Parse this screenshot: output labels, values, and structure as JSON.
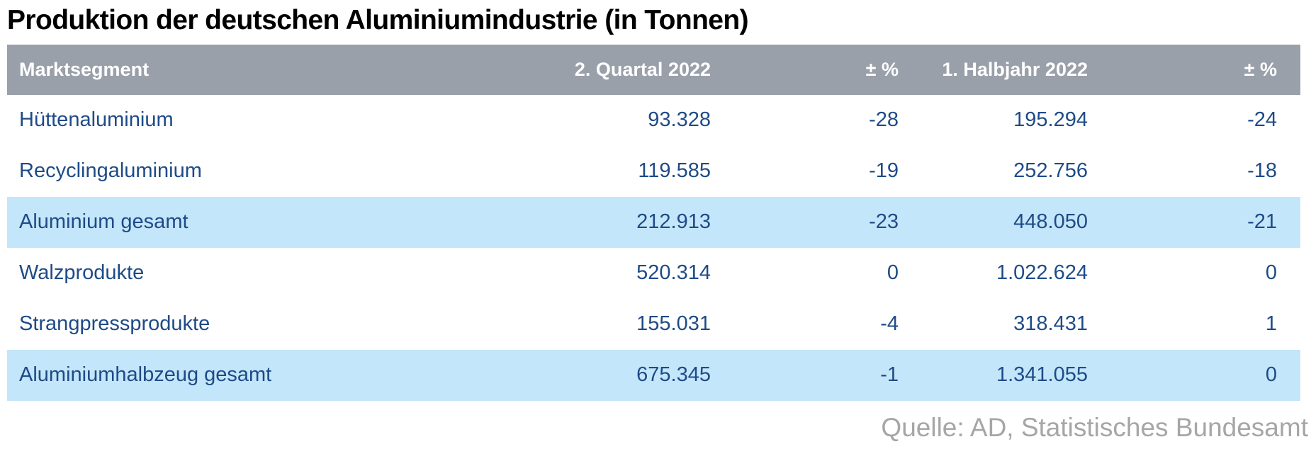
{
  "title": "Produktion der deutschen Aluminiumindustrie (in Tonnen)",
  "source": "Quelle: AD, Statistisches Bundesamt",
  "colors": {
    "title_text": "#000000",
    "header_bg": "#9aa0aa",
    "header_text": "#ffffff",
    "row_text": "#1e4b87",
    "highlight_bg": "#c4e6fa",
    "source_text": "#a6a6a6"
  },
  "table": {
    "columns": [
      "Marktsegment",
      "2. Quartal 2022",
      "± %",
      "1. Halbjahr 2022",
      "± %"
    ],
    "rows": [
      {
        "segment": "Hüttenaluminium",
        "q2_2022": "93.328",
        "q2_pct": "-28",
        "h1_2022": "195.294",
        "h1_pct": "-24",
        "highlight": false
      },
      {
        "segment": "Recyclingaluminium",
        "q2_2022": "119.585",
        "q2_pct": "-19",
        "h1_2022": "252.756",
        "h1_pct": "-18",
        "highlight": false
      },
      {
        "segment": "Aluminium gesamt",
        "q2_2022": "212.913",
        "q2_pct": "-23",
        "h1_2022": "448.050",
        "h1_pct": "-21",
        "highlight": true
      },
      {
        "segment": "Walzprodukte",
        "q2_2022": "520.314",
        "q2_pct": "0",
        "h1_2022": "1.022.624",
        "h1_pct": "0",
        "highlight": false
      },
      {
        "segment": "Strangpressprodukte",
        "q2_2022": "155.031",
        "q2_pct": "-4",
        "h1_2022": "318.431",
        "h1_pct": "1",
        "highlight": false
      },
      {
        "segment": "Aluminiumhalbzeug gesamt",
        "q2_2022": "675.345",
        "q2_pct": "-1",
        "h1_2022": "1.341.055",
        "h1_pct": "0",
        "highlight": true
      }
    ]
  },
  "chart_data": {
    "type": "table",
    "title": "Produktion der deutschen Aluminiumindustrie (in Tonnen)",
    "columns": [
      "Marktsegment",
      "2. Quartal 2022",
      "± %",
      "1. Halbjahr 2022",
      "± %"
    ],
    "rows": [
      [
        "Hüttenaluminium",
        93328,
        -28,
        195294,
        -24
      ],
      [
        "Recyclingaluminium",
        119585,
        -19,
        252756,
        -18
      ],
      [
        "Aluminium gesamt",
        212913,
        -23,
        448050,
        -21
      ],
      [
        "Walzprodukte",
        520314,
        0,
        1022624,
        0
      ],
      [
        "Strangpressprodukte",
        155031,
        -4,
        318431,
        1
      ],
      [
        "Aluminiumhalbzeug gesamt",
        675345,
        -1,
        1341055,
        0
      ]
    ],
    "highlighted_row_indices": [
      2,
      5
    ],
    "units": "Tonnen",
    "source": "Quelle: AD, Statistisches Bundesamt",
    "legend_position": "none",
    "grid": false
  }
}
